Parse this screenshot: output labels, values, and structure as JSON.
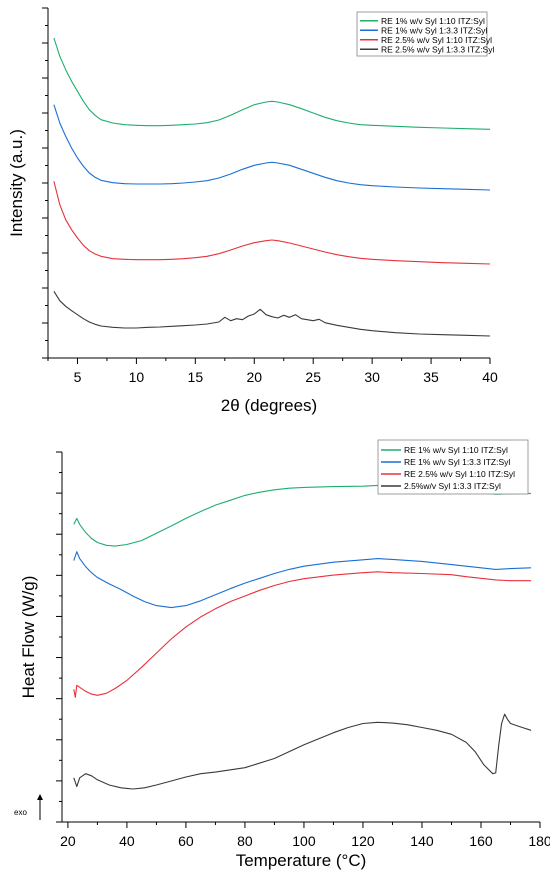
{
  "chart_data": [
    {
      "type": "line",
      "title": "",
      "xlabel": "2θ (degrees)",
      "ylabel": "Intensity (a.u.)",
      "xlim": [
        2.5,
        40
      ],
      "xticks": [
        5,
        10,
        15,
        20,
        25,
        30,
        35,
        40
      ],
      "y_ticks_labeled": false,
      "grid": false,
      "legend_position": "top-right",
      "series": [
        {
          "name": "RE 1% w/v Syl 1:10 ITZ:Syl",
          "color": "#1fae6e",
          "x": [
            3,
            3.5,
            4,
            4.5,
            5,
            5.5,
            6,
            6.5,
            7,
            8,
            9,
            10,
            11,
            12,
            13,
            14,
            15,
            16,
            17,
            18,
            19,
            20,
            21,
            21.5,
            22,
            23,
            24,
            25,
            26,
            27,
            28,
            29,
            30,
            32,
            34,
            36,
            38,
            40
          ],
          "y": [
            9.6,
            9.05,
            8.65,
            8.3,
            8.0,
            7.7,
            7.45,
            7.28,
            7.15,
            7.05,
            7.0,
            6.98,
            6.97,
            6.97,
            6.98,
            7.0,
            7.02,
            7.06,
            7.14,
            7.28,
            7.45,
            7.6,
            7.68,
            7.7,
            7.68,
            7.6,
            7.48,
            7.35,
            7.22,
            7.12,
            7.05,
            7.0,
            6.98,
            6.95,
            6.92,
            6.9,
            6.88,
            6.86
          ]
        },
        {
          "name": "RE 1% w/v Syl 1:3.3 ITZ:Syl",
          "color": "#1a6fd4",
          "x": [
            3,
            3.5,
            4,
            4.5,
            5,
            5.5,
            6,
            6.5,
            7,
            8,
            9,
            10,
            11,
            12,
            13,
            14,
            15,
            16,
            17,
            18,
            19,
            20,
            21,
            21.5,
            22,
            23,
            24,
            25,
            26,
            27,
            28,
            29,
            30,
            32,
            34,
            36,
            38,
            40
          ],
          "y": [
            7.6,
            7.05,
            6.65,
            6.3,
            6.0,
            5.75,
            5.55,
            5.42,
            5.33,
            5.26,
            5.23,
            5.22,
            5.22,
            5.22,
            5.23,
            5.25,
            5.28,
            5.32,
            5.4,
            5.52,
            5.66,
            5.78,
            5.85,
            5.87,
            5.85,
            5.78,
            5.66,
            5.54,
            5.42,
            5.32,
            5.25,
            5.2,
            5.17,
            5.13,
            5.1,
            5.08,
            5.06,
            5.04
          ]
        },
        {
          "name": "RE 2.5% w/v Syl 1:10 ITZ:Syl",
          "color": "#e8303a",
          "x": [
            3,
            3.5,
            4,
            4.5,
            5,
            5.5,
            6,
            6.5,
            7,
            8,
            9,
            10,
            11,
            12,
            13,
            14,
            15,
            16,
            17,
            18,
            19,
            20,
            21,
            21.5,
            22,
            23,
            24,
            25,
            26,
            27,
            28,
            29,
            30,
            32,
            34,
            36,
            38,
            40
          ],
          "y": [
            5.3,
            4.6,
            4.15,
            3.85,
            3.6,
            3.38,
            3.22,
            3.12,
            3.05,
            2.98,
            2.96,
            2.95,
            2.95,
            2.95,
            2.96,
            2.98,
            3.01,
            3.05,
            3.13,
            3.24,
            3.36,
            3.46,
            3.52,
            3.54,
            3.52,
            3.45,
            3.36,
            3.27,
            3.18,
            3.1,
            3.04,
            2.99,
            2.96,
            2.92,
            2.89,
            2.86,
            2.84,
            2.82
          ]
        },
        {
          "name": "RE 2.5% w/v Syl 1:3.3 ITZ:Syl",
          "color": "#3a3a3a",
          "x": [
            3,
            3.5,
            4,
            4.5,
            5,
            5.5,
            6,
            6.5,
            7,
            8,
            9,
            10,
            11,
            12,
            13,
            14,
            15,
            16,
            17,
            17.5,
            18,
            18.5,
            19,
            19.5,
            20,
            20.5,
            21,
            21.5,
            22,
            22.5,
            23,
            23.5,
            24,
            25,
            25.5,
            26,
            27,
            28,
            29,
            30,
            32,
            34,
            36,
            38,
            40
          ],
          "y": [
            2.0,
            1.72,
            1.55,
            1.42,
            1.3,
            1.18,
            1.08,
            1.01,
            0.96,
            0.92,
            0.9,
            0.9,
            0.92,
            0.93,
            0.95,
            0.97,
            0.99,
            1.02,
            1.08,
            1.22,
            1.12,
            1.18,
            1.15,
            1.26,
            1.32,
            1.46,
            1.3,
            1.24,
            1.2,
            1.28,
            1.22,
            1.3,
            1.18,
            1.12,
            1.16,
            1.06,
            0.98,
            0.92,
            0.86,
            0.82,
            0.76,
            0.72,
            0.7,
            0.68,
            0.66
          ]
        }
      ]
    },
    {
      "type": "line",
      "title": "",
      "xlabel": "Temperature (°C)",
      "ylabel": "Heat Flow (W/g)",
      "xlim": [
        18,
        180
      ],
      "xticks": [
        20,
        40,
        60,
        80,
        100,
        120,
        140,
        160,
        180
      ],
      "y_ticks_labeled": false,
      "grid": false,
      "legend_position": "top-right",
      "annotation": "exo",
      "series": [
        {
          "name": "RE 1% w/v Syl 1:10 ITZ:Syl",
          "color": "#1fae6e",
          "x": [
            22,
            23,
            24,
            26,
            28,
            30,
            33,
            36,
            40,
            45,
            50,
            55,
            60,
            65,
            70,
            75,
            80,
            85,
            90,
            95,
            100,
            110,
            120,
            125,
            130,
            140,
            150,
            155,
            160,
            165,
            170,
            177
          ],
          "y": [
            8.4,
            8.55,
            8.4,
            8.2,
            8.05,
            7.95,
            7.88,
            7.86,
            7.9,
            8.0,
            8.18,
            8.36,
            8.55,
            8.72,
            8.88,
            9.0,
            9.12,
            9.2,
            9.26,
            9.3,
            9.32,
            9.34,
            9.35,
            9.37,
            9.35,
            9.3,
            9.22,
            9.2,
            9.18,
            9.15,
            9.16,
            9.17
          ]
        },
        {
          "name": "RE 1% w/v Syl 1:3.3 ITZ:Syl",
          "color": "#1a6fd4",
          "x": [
            22,
            23,
            24,
            26,
            28,
            30,
            34,
            38,
            42,
            46,
            50,
            55,
            60,
            65,
            70,
            75,
            80,
            85,
            90,
            95,
            100,
            110,
            120,
            125,
            130,
            140,
            150,
            155,
            160,
            165,
            170,
            177
          ],
          "y": [
            7.5,
            7.72,
            7.55,
            7.35,
            7.2,
            7.08,
            6.92,
            6.78,
            6.62,
            6.48,
            6.38,
            6.33,
            6.38,
            6.5,
            6.65,
            6.8,
            6.94,
            7.06,
            7.18,
            7.28,
            7.36,
            7.46,
            7.52,
            7.55,
            7.53,
            7.48,
            7.4,
            7.36,
            7.32,
            7.28,
            7.3,
            7.32
          ]
        },
        {
          "name": "RE 2.5% w/v Syl 1:10 ITZ:Syl",
          "color": "#e8303a",
          "x": [
            22,
            22.5,
            23,
            24,
            26,
            28,
            30,
            33,
            36,
            40,
            45,
            50,
            55,
            60,
            65,
            70,
            75,
            80,
            85,
            90,
            95,
            100,
            110,
            120,
            125,
            130,
            140,
            150,
            155,
            160,
            165,
            170,
            177
          ],
          "y": [
            4.3,
            4.1,
            4.4,
            4.35,
            4.25,
            4.18,
            4.15,
            4.2,
            4.32,
            4.52,
            4.85,
            5.2,
            5.55,
            5.85,
            6.1,
            6.3,
            6.48,
            6.62,
            6.76,
            6.88,
            6.98,
            7.05,
            7.14,
            7.2,
            7.22,
            7.2,
            7.18,
            7.15,
            7.1,
            7.06,
            7.02,
            7.0,
            7.0
          ]
        },
        {
          "name": "2.5%w/v Syl 1:3.3 ITZ:Syl",
          "color": "#3a3a3a",
          "x": [
            22,
            23,
            24,
            26,
            28,
            30,
            34,
            38,
            42,
            46,
            50,
            55,
            60,
            65,
            70,
            80,
            90,
            100,
            110,
            115,
            120,
            125,
            130,
            135,
            140,
            145,
            150,
            155,
            158,
            161,
            164,
            165,
            166,
            167,
            168,
            169,
            170,
            172,
            174,
            177
          ],
          "y": [
            2.1,
            1.88,
            2.1,
            2.2,
            2.15,
            2.05,
            1.92,
            1.85,
            1.82,
            1.85,
            1.92,
            2.02,
            2.12,
            2.2,
            2.24,
            2.35,
            2.58,
            2.92,
            3.22,
            3.35,
            3.45,
            3.48,
            3.46,
            3.42,
            3.35,
            3.28,
            3.18,
            2.98,
            2.75,
            2.42,
            2.2,
            2.22,
            2.9,
            3.45,
            3.68,
            3.55,
            3.45,
            3.4,
            3.35,
            3.28
          ]
        }
      ]
    }
  ]
}
